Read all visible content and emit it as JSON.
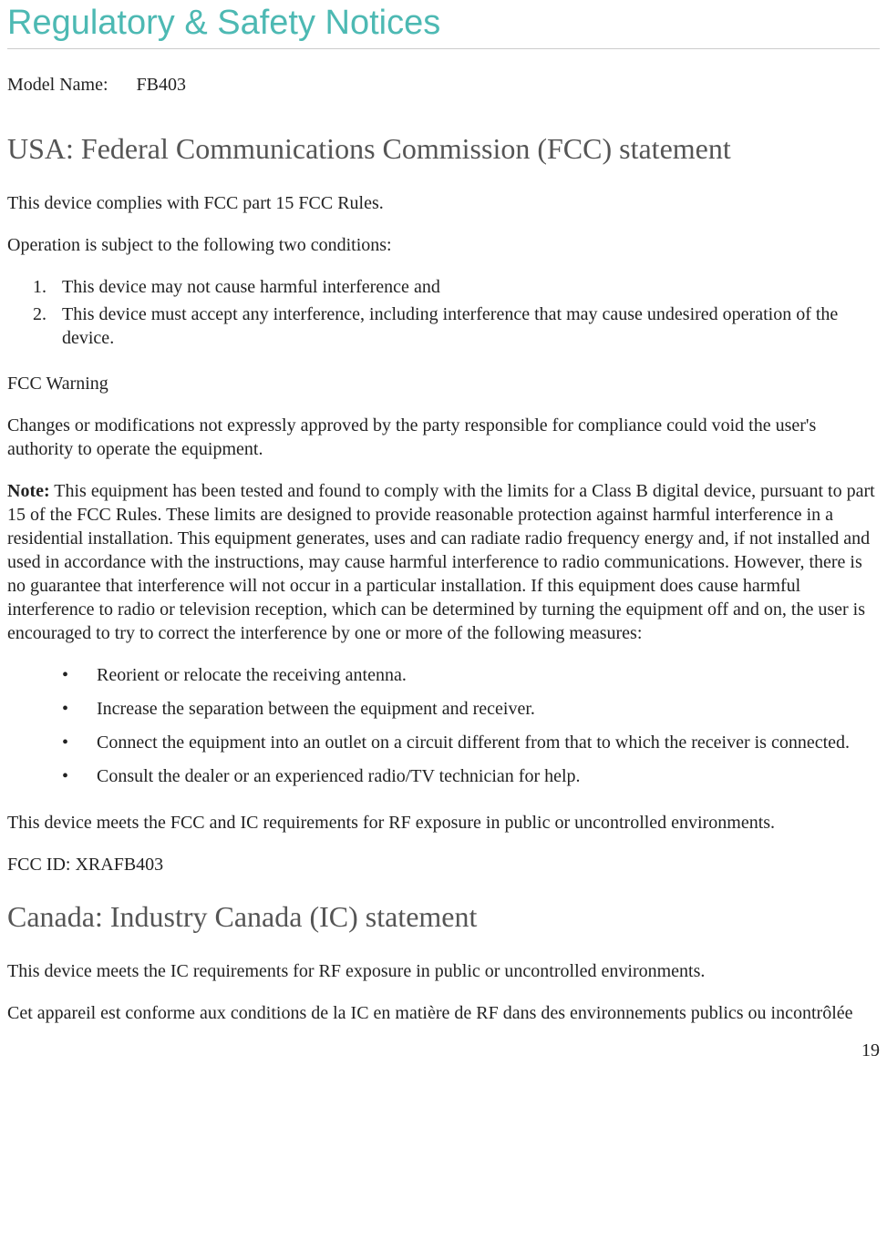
{
  "page": {
    "title": "Regulatory & Safety Notices",
    "model_label": "Model Name:",
    "model_value": "FB403",
    "page_number": "19"
  },
  "fcc": {
    "heading": "USA: Federal Communications Commission (FCC) statement",
    "p1": "This device complies with FCC part 15 FCC Rules.",
    "p2": "Operation is subject to the following two conditions:",
    "conditions": [
      "This device may not cause harmful interference and",
      "This device must accept any interference, including interference that may cause undesired operation of the device."
    ],
    "warning_title": "FCC Warning",
    "warning_body": "Changes or modifications not expressly approved by the party responsible for compliance could void the user's authority to operate the equipment.",
    "note_label": "Note:",
    "note_body": " This equipment has been tested and found to comply with the limits for a Class B digital device, pursuant to part 15 of the FCC Rules. These limits are designed to provide reasonable protection against harmful interference in a residential installation. This equipment generates, uses and can radiate radio frequency energy and, if not installed and used in accordance with the instructions, may cause harmful interference to radio communications. However, there is no guarantee that interference will not occur in a particular installation. If this equipment does cause harmful interference to radio or television reception, which can be determined by turning the equipment off and on, the user is encouraged to try to correct the interference by one or more of the following measures:",
    "measures": [
      "Reorient or relocate the receiving antenna.",
      "Increase the separation between the equipment and receiver.",
      "Connect the equipment into an outlet on a circuit different from that to which the receiver is connected.",
      "Consult the dealer or an experienced radio/TV technician for help."
    ],
    "rf_exposure": "This device meets the FCC and IC requirements for RF exposure in public or uncontrolled environments.",
    "fcc_id": "FCC ID: XRAFB403"
  },
  "ic": {
    "heading": "Canada: Industry Canada (IC) statement",
    "p1": "This device meets the IC requirements for RF exposure in public or uncontrolled environments.",
    "p2": "Cet appareil est conforme aux conditions de la IC en matière de RF dans des environnements publics ou incontrôlée"
  },
  "style": {
    "title_color": "#4db9b3",
    "heading_color": "#555555",
    "body_color": "#222222",
    "divider_color": "#cccccc",
    "title_fontsize": 38,
    "heading_fontsize": 32,
    "body_fontsize": 20,
    "font_family_title": "Arial, Helvetica, sans-serif",
    "font_family_body": "Times New Roman, serif"
  }
}
